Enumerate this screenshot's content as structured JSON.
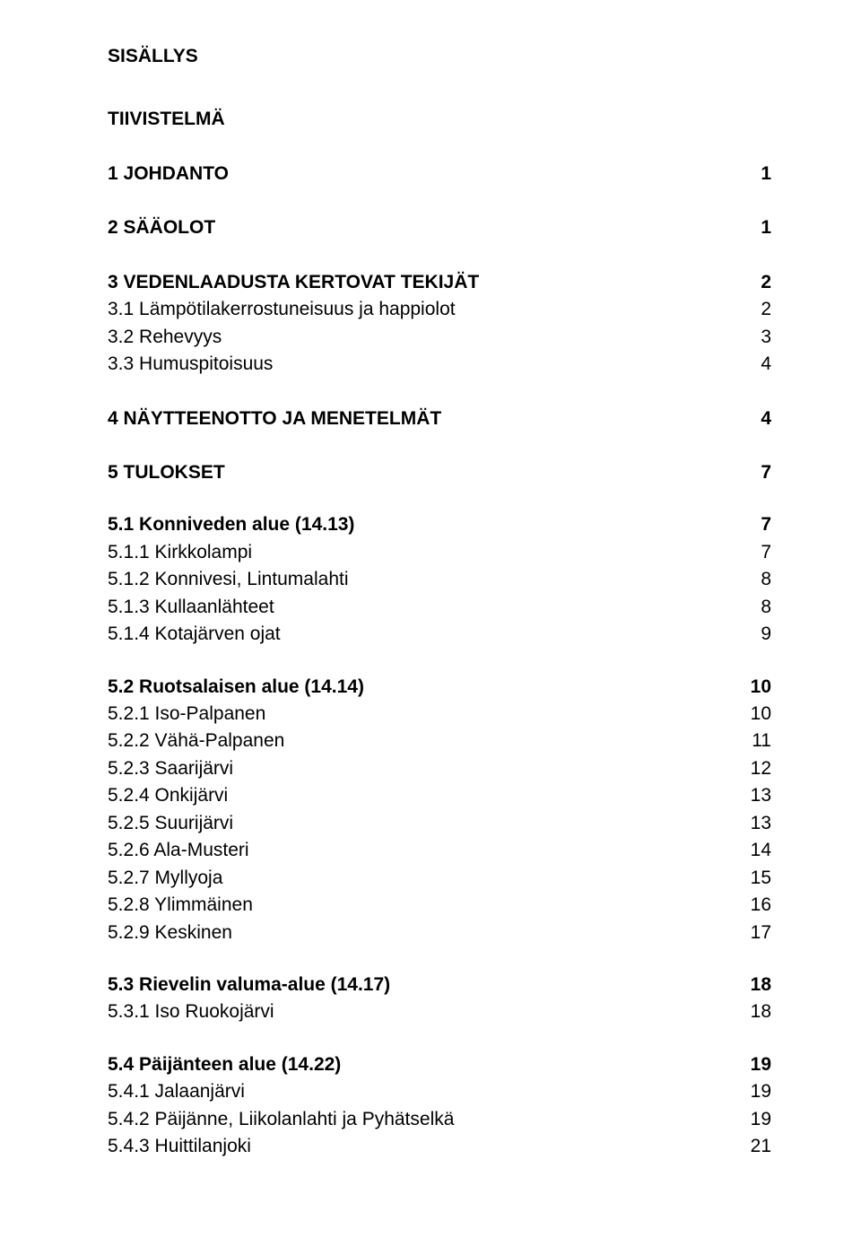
{
  "title": "SISÄLLYS",
  "abstract_heading": "TIIVISTELMÄ",
  "toc": [
    {
      "label": "1 JOHDANTO",
      "page": "1",
      "bold": true,
      "spacer": "section"
    },
    {
      "label": "2 SÄÄOLOT",
      "page": "1",
      "bold": true,
      "spacer": "section"
    },
    {
      "label": "3 VEDENLAADUSTA KERTOVAT TEKIJÄT",
      "page": "2",
      "bold": true,
      "spacer": "section"
    },
    {
      "label": "3.1 Lämpötilakerrostuneisuus ja happiolot",
      "page": "2",
      "bold": false,
      "spacer": "none"
    },
    {
      "label": "3.2 Rehevyys",
      "page": "3",
      "bold": false,
      "spacer": "none"
    },
    {
      "label": "3.3 Humuspitoisuus",
      "page": "4",
      "bold": false,
      "spacer": "none"
    },
    {
      "label": "4 NÄYTTEENOTTO JA MENETELMÄT",
      "page": "4",
      "bold": true,
      "spacer": "section"
    },
    {
      "label": "5 TULOKSET",
      "page": "7",
      "bold": true,
      "spacer": "section"
    },
    {
      "label": "5.1 Konniveden alue (14.13)",
      "page": "7",
      "bold": true,
      "spacer": "group"
    },
    {
      "label": "5.1.1 Kirkkolampi",
      "page": "7",
      "bold": false,
      "spacer": "none"
    },
    {
      "label": "5.1.2 Konnivesi, Lintumalahti",
      "page": "8",
      "bold": false,
      "spacer": "none"
    },
    {
      "label": "5.1.3 Kullaanlähteet",
      "page": "8",
      "bold": false,
      "spacer": "none"
    },
    {
      "label": "5.1.4 Kotajärven ojat",
      "page": "9",
      "bold": false,
      "spacer": "none"
    },
    {
      "label": "5.2 Ruotsalaisen alue (14.14)",
      "page": "10",
      "bold": true,
      "spacer": "group"
    },
    {
      "label": "5.2.1 Iso-Palpanen",
      "page": "10",
      "bold": false,
      "spacer": "none"
    },
    {
      "label": "5.2.2 Vähä-Palpanen",
      "page": "11",
      "bold": false,
      "spacer": "none"
    },
    {
      "label": "5.2.3 Saarijärvi",
      "page": "12",
      "bold": false,
      "spacer": "none"
    },
    {
      "label": "5.2.4 Onkijärvi",
      "page": "13",
      "bold": false,
      "spacer": "none"
    },
    {
      "label": "5.2.5 Suurijärvi",
      "page": "13",
      "bold": false,
      "spacer": "none"
    },
    {
      "label": "5.2.6 Ala-Musteri",
      "page": "14",
      "bold": false,
      "spacer": "none"
    },
    {
      "label": "5.2.7 Myllyoja",
      "page": "15",
      "bold": false,
      "spacer": "none"
    },
    {
      "label": "5.2.8 Ylimmäinen",
      "page": "16",
      "bold": false,
      "spacer": "none"
    },
    {
      "label": "5.2.9 Keskinen",
      "page": "17",
      "bold": false,
      "spacer": "none"
    },
    {
      "label": "5.3 Rievelin valuma-alue (14.17)",
      "page": "18",
      "bold": true,
      "spacer": "group"
    },
    {
      "label": "5.3.1 Iso Ruokojärvi",
      "page": "18",
      "bold": false,
      "spacer": "none"
    },
    {
      "label": "5.4 Päijänteen alue (14.22)",
      "page": "19",
      "bold": true,
      "spacer": "group"
    },
    {
      "label": "5.4.1 Jalaanjärvi",
      "page": "19",
      "bold": false,
      "spacer": "none"
    },
    {
      "label": "5.4.2 Päijänne, Liikolanlahti ja Pyhätselkä",
      "page": "19",
      "bold": false,
      "spacer": "none"
    },
    {
      "label": "5.4.3 Huittilanjoki",
      "page": "21",
      "bold": false,
      "spacer": "none"
    }
  ]
}
